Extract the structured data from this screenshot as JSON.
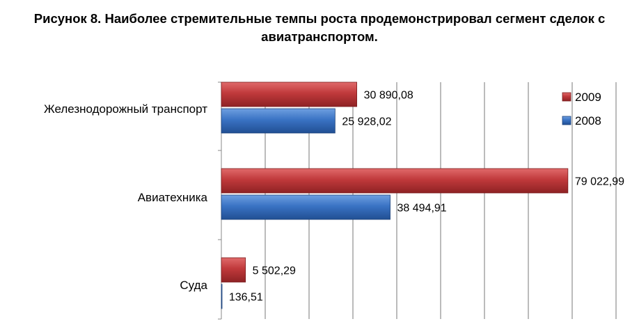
{
  "title_line1": "Рисунок 8. Наиболее стремительные темпы роста продемонстрировал сегмент сделок с",
  "title_line2": "авиатранспортом.",
  "colors": {
    "2009": "#c0393b",
    "2008": "#3a73c4",
    "grid": "#777777"
  },
  "chart_data": {
    "type": "bar",
    "orientation": "horizontal",
    "title": "Рисунок 8. Наиболее стремительные темпы роста продемонстрировал сегмент сделок с авиатранспортом.",
    "categories": [
      "Железнодорожный транспорт",
      "Авиатехника",
      "Суда"
    ],
    "series": [
      {
        "name": "2009",
        "values": [
          30890.08,
          79022.99,
          5502.29
        ],
        "labels": [
          "30 890,08",
          "79 022,99",
          "5 502,29"
        ]
      },
      {
        "name": "2008",
        "values": [
          25928.02,
          38494.91,
          136.51
        ],
        "labels": [
          "25 928,02",
          "38 494,91",
          "136,51"
        ]
      }
    ],
    "xlim": [
      0,
      90000
    ],
    "grid": true,
    "legend": "top-right"
  }
}
